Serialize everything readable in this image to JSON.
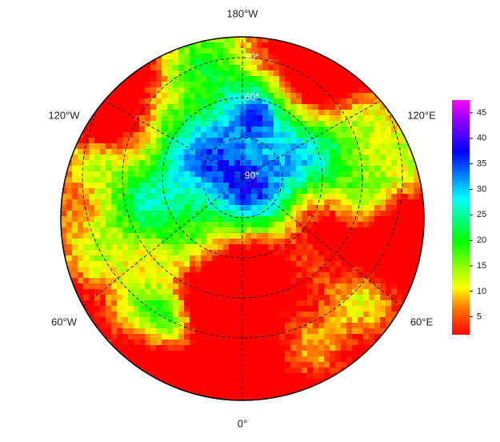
{
  "map": {
    "lon_labels": [
      "180°W",
      "120°W",
      "120°E",
      "60°W",
      "60°E",
      "0°"
    ],
    "lat_labels": [
      "50°",
      "60°",
      "90°"
    ],
    "colorbar": {
      "lim": [
        1.5,
        47.5
      ],
      "ticks": [
        5,
        10,
        15,
        20,
        25,
        30,
        35,
        40,
        45
      ]
    }
  }
}
